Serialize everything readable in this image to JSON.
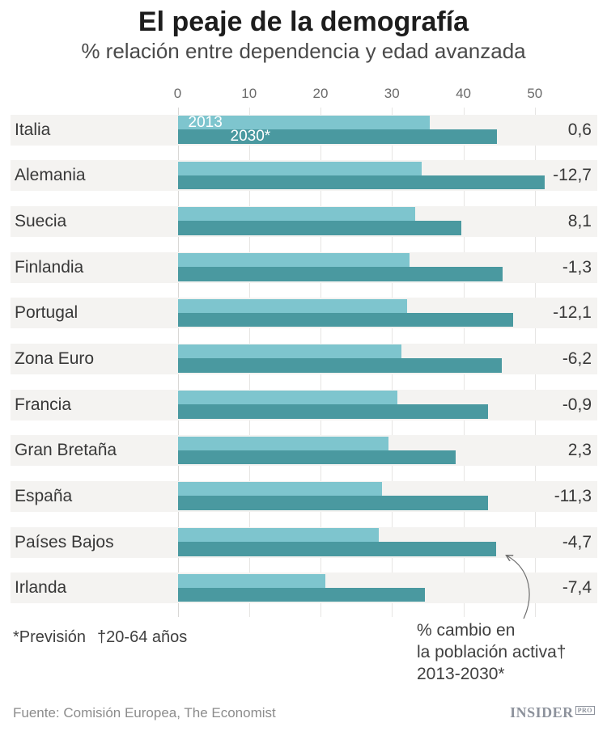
{
  "header": {
    "title": "El peaje de la demografía",
    "subtitle": "% relación entre dependencia y edad avanzada"
  },
  "chart_data": {
    "type": "bar",
    "orientation": "horizontal",
    "title": "El peaje de la demografía",
    "subtitle": "% relación entre dependencia y edad avanzada",
    "xlabel": "",
    "ylabel": "",
    "xlim": [
      0,
      58.5
    ],
    "x_ticks": [
      0,
      10,
      20,
      30,
      40,
      50
    ],
    "grid": true,
    "legend_position": "inside-first-bars",
    "categories": [
      "Italia",
      "Alemania",
      "Suecia",
      "Finlandia",
      "Portugal",
      "Zona Euro",
      "Francia",
      "Gran Bretaña",
      "España",
      "Países Bajos",
      "Irlanda"
    ],
    "series": [
      {
        "name": "2013",
        "color": "#7ec5ce",
        "values": [
          35.3,
          34.2,
          33.3,
          32.5,
          32.1,
          31.3,
          30.8,
          29.5,
          28.6,
          28.2,
          20.7
        ]
      },
      {
        "name": "2030*",
        "color": "#4a99a0",
        "values": [
          44.7,
          51.4,
          39.7,
          45.5,
          47.0,
          45.4,
          43.5,
          38.9,
          43.5,
          44.6,
          34.6
        ]
      }
    ],
    "change_labels": [
      "0,6",
      "-12,7",
      "8,1",
      "-1,3",
      "-12,1",
      "-6,2",
      "-0,9",
      "2,3",
      "-11,3",
      "-4,7",
      "-7,4"
    ]
  },
  "annotation": {
    "lines": [
      "% cambio en",
      "la población activa†",
      "2013-2030*"
    ]
  },
  "footnote": {
    "prevision": "*Previsión",
    "ages": "†20-64 años"
  },
  "source": "Fuente: Comisión Europea, The Economist",
  "logo": {
    "name": "INSIDER",
    "suffix": "PRO"
  },
  "colors": {
    "bar_2013": "#7ec5ce",
    "bar_2030": "#4a99a0",
    "row_band": "#f4f3f1",
    "gridline": "#e6e5e3",
    "axis_line": "#d9d8d6",
    "text_dark": "#383838",
    "text_gray": "#8c8c8c",
    "arrow": "#6e6e6e"
  }
}
